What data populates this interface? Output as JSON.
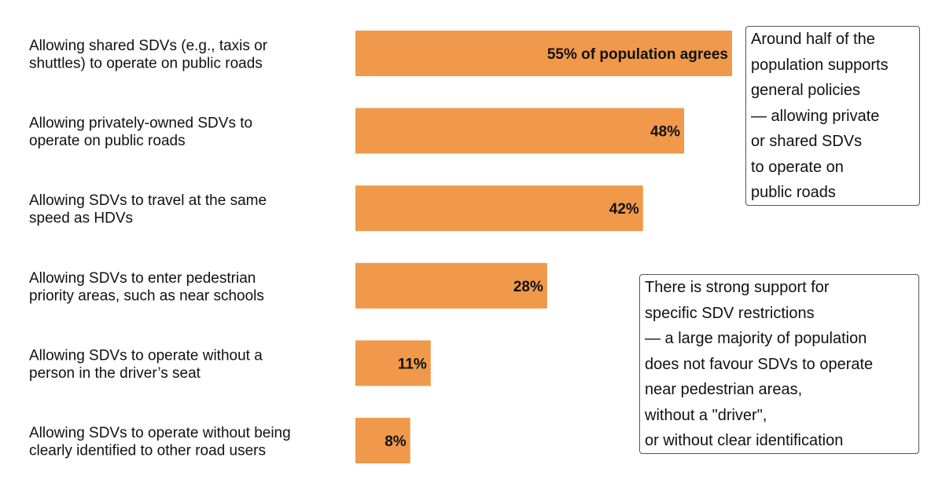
{
  "chart_data": {
    "type": "bar",
    "orientation": "horizontal",
    "categories": [
      [
        "Allowing shared SDVs (e.g., taxis or",
        "shuttles) to operate on public roads"
      ],
      [
        "Allowing privately-owned SDVs to",
        "operate on public roads"
      ],
      [
        "Allowing SDVs to travel at the same",
        "speed as HDVs"
      ],
      [
        "Allowing SDVs to enter pedestrian",
        "priority areas, such as near schools"
      ],
      [
        "Allowing SDVs to operate without a",
        "person in the driver’s seat"
      ],
      [
        "Allowing SDVs to operate without being",
        "clearly identified to other road users"
      ]
    ],
    "values": [
      55,
      48,
      42,
      28,
      11,
      8
    ],
    "data_labels": [
      "55% of population agrees",
      "48%",
      "42%",
      "28%",
      "11%",
      "8%"
    ],
    "bar_color": "#F0994A",
    "xlim": [
      0,
      55
    ],
    "grid": false,
    "legend": "none"
  },
  "annotations": [
    {
      "lines": [
        "Around half of the",
        "population supports",
        "general policies",
        "— allowing private",
        "or shared SDVs",
        "to operate on",
        "public roads"
      ]
    },
    {
      "lines": [
        "There is strong support for",
        "specific SDV restrictions",
        "— a large majority of population",
        "does not favour SDVs to operate",
        "near pedestrian areas,",
        "without a \"driver\",",
        "or without clear identification"
      ]
    }
  ]
}
